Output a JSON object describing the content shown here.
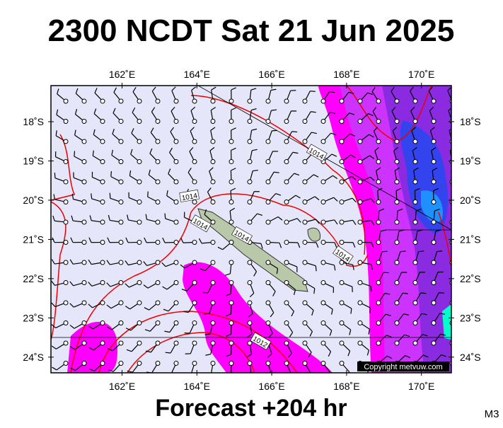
{
  "header": {
    "title": "2300 NCDT Sat 21 Jun 2025"
  },
  "map": {
    "lon_range": [
      160.1,
      170.8
    ],
    "lat_range": [
      -17.08,
      -24.4
    ],
    "lon_ticks": [
      {
        "value": 162,
        "label": "162˚E"
      },
      {
        "value": 164,
        "label": "164˚E"
      },
      {
        "value": 166,
        "label": "166˚E"
      },
      {
        "value": 168,
        "label": "168˚E"
      },
      {
        "value": 170,
        "label": "170˚E"
      }
    ],
    "lat_ticks": [
      {
        "value": -18,
        "label": "18˚S"
      },
      {
        "value": -19,
        "label": "19˚S"
      },
      {
        "value": -20,
        "label": "20˚S"
      },
      {
        "value": -21,
        "label": "21˚S"
      },
      {
        "value": -22,
        "label": "22˚S"
      },
      {
        "value": -23,
        "label": "23˚S"
      },
      {
        "value": -24,
        "label": "24˚S"
      }
    ],
    "contour_labels": [
      {
        "text": "1014",
        "lon": 163.8,
        "lat": -19.9
      },
      {
        "text": "1014",
        "lon": 164.1,
        "lat": -20.6
      },
      {
        "text": "1014",
        "lon": 165.2,
        "lat": -20.9
      },
      {
        "text": "1014",
        "lon": 167.2,
        "lat": -18.8
      },
      {
        "text": "1014",
        "lon": 167.9,
        "lat": -21.4
      },
      {
        "text": "1012",
        "lon": 165.7,
        "lat": -23.6
      }
    ],
    "copyright": "Copyright metvuw.com"
  },
  "footer": {
    "subtitle": "Forecast +204 hr",
    "code": "M3"
  }
}
